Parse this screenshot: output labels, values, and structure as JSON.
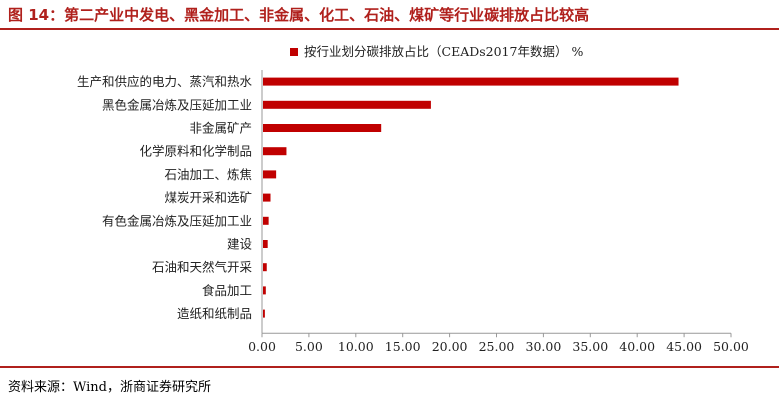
{
  "figure": {
    "title": "图 14：第二产业中发电、黑金加工、非金属、化工、石油、煤矿等行业碳排放占比较高",
    "source": "资料来源：Wind，浙商证券研究所"
  },
  "chart_data": {
    "type": "bar",
    "orientation": "horizontal",
    "categories": [
      "生产和供应的电力、蒸汽和热水",
      "黑色金属冶炼及压延加工业",
      "非金属矿产",
      "化学原料和化学制品",
      "石油加工、炼焦",
      "煤炭开采和选矿",
      "有色金属冶炼及压延加工业",
      "建设",
      "石油和天然气开采",
      "食品加工",
      "造纸和纸制品"
    ],
    "series": [
      {
        "name": "按行业划分碳排放占比（CEADs2017年数据） %",
        "color": "#c00000",
        "values": [
          44.3,
          17.9,
          12.6,
          2.5,
          1.4,
          0.8,
          0.6,
          0.5,
          0.4,
          0.3,
          0.2
        ]
      }
    ],
    "xlim": [
      0,
      50
    ],
    "xticks": [
      "0.00",
      "5.00",
      "10.00",
      "15.00",
      "20.00",
      "25.00",
      "30.00",
      "35.00",
      "40.00",
      "45.00",
      "50.00"
    ],
    "legend_position": "top",
    "grid": false
  }
}
